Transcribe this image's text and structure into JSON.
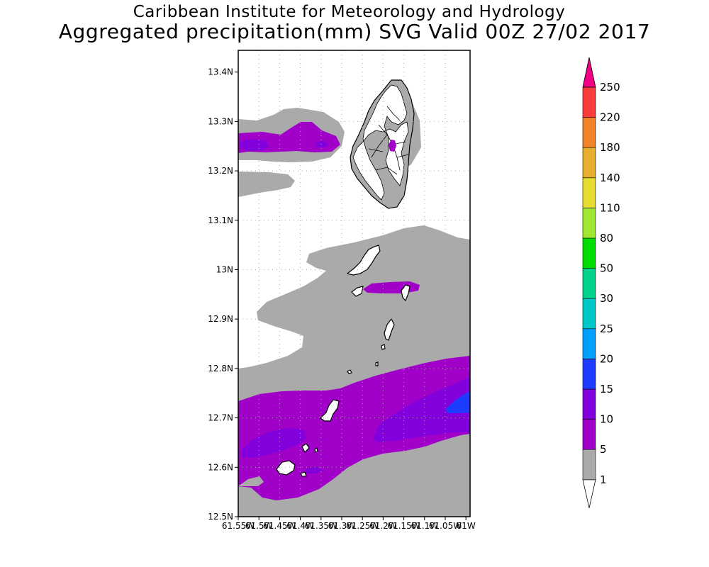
{
  "title": {
    "line1": "Caribbean Institute for Meteorology and Hydrology",
    "line2": "Aggregated precipitation(mm) SVG Valid 00Z 27/02 2017"
  },
  "axes": {
    "lat_labels": [
      "13.4N",
      "13.3N",
      "13.2N",
      "13.1N",
      "13N",
      "12.9N",
      "12.8N",
      "12.7N",
      "12.6N",
      "12.5N"
    ],
    "lon_labels": [
      "61.55W",
      "61.5W",
      "61.45W",
      "61.4W",
      "61.35W",
      "61.3W",
      "61.25W",
      "61.2W",
      "61.15W",
      "61.1W",
      "61.05W",
      "61W"
    ],
    "lat_values": [
      13.4,
      13.3,
      13.2,
      13.1,
      13.0,
      12.9,
      12.8,
      12.7,
      12.6,
      12.5
    ],
    "lon_values": [
      -61.55,
      -61.5,
      -61.45,
      -61.4,
      -61.35,
      -61.3,
      -61.25,
      -61.2,
      -61.15,
      -61.1,
      -61.05,
      -61.0
    ]
  },
  "legend": {
    "levels": [
      "1",
      "5",
      "10",
      "15",
      "20",
      "25",
      "30",
      "50",
      "80",
      "110",
      "140",
      "180",
      "220",
      "250"
    ],
    "colors": [
      "#aaaaaa",
      "#a000c8",
      "#8200dc",
      "#1e3cff",
      "#00a0ff",
      "#00c8c8",
      "#00d28c",
      "#00dc00",
      "#a0e632",
      "#e6dc32",
      "#e6af2d",
      "#f08228",
      "#fa3c3c",
      "#f00082"
    ],
    "under_color": "#ffffff",
    "over_color": "#f00082"
  },
  "colors": {
    "light_rain": "#aaaaaa",
    "rain_5_10": "#a000c8",
    "rain_10_15": "#8200dc",
    "rain_15_20": "#1e3cff",
    "land_outline": "#000000"
  }
}
